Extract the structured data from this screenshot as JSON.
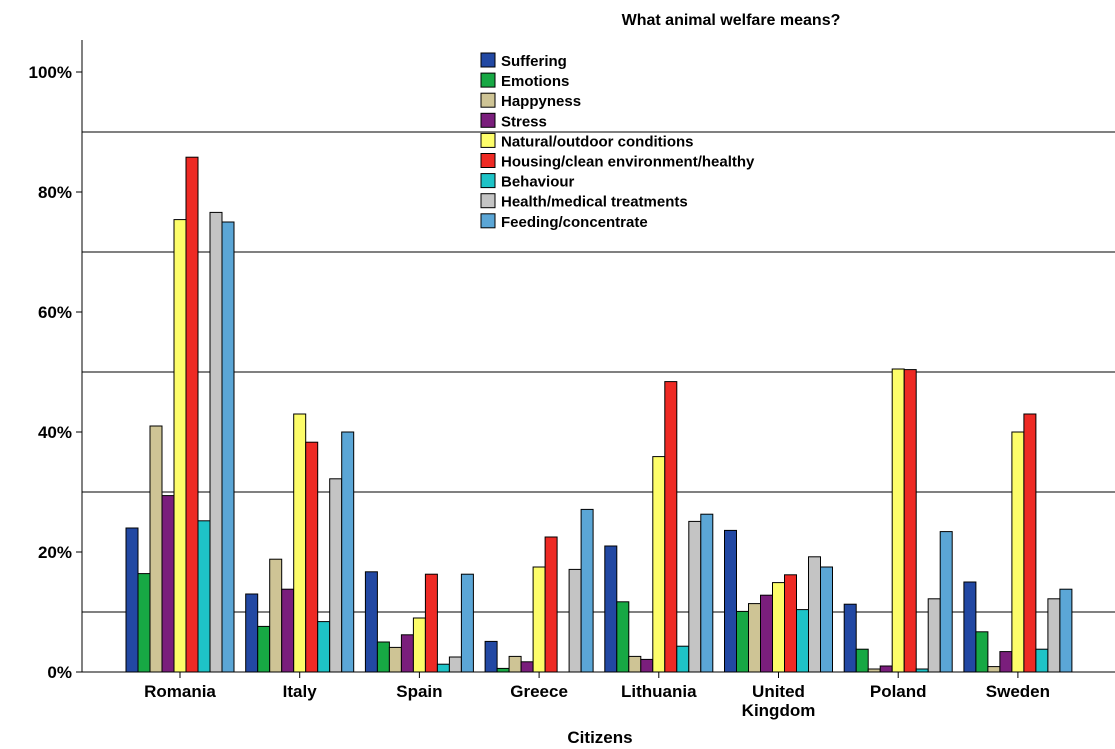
{
  "chart_data": {
    "type": "bar",
    "title": "What animal welfare means?",
    "xlabel": "Citizens",
    "ylabel": "",
    "ylim": [
      0,
      100
    ],
    "yticks": [
      "0%",
      "20%",
      "40%",
      "60%",
      "80%",
      "100%"
    ],
    "grid_values": [
      10,
      30,
      50,
      70,
      90
    ],
    "legend_position": "top-center",
    "categories": [
      "Romania",
      "Italy",
      "Spain",
      "Greece",
      "Lithuania",
      "United Kingdom",
      "Poland",
      "Sweden"
    ],
    "series": [
      {
        "name": "Suffering",
        "color": "#2248a3",
        "values": [
          24,
          13,
          16.7,
          5.1,
          21,
          23.6,
          11.3,
          15
        ]
      },
      {
        "name": "Emotions",
        "color": "#17a844",
        "values": [
          16.4,
          7.6,
          5,
          0.6,
          11.7,
          10.1,
          3.8,
          6.7
        ]
      },
      {
        "name": "Happyness",
        "color": "#cec495",
        "values": [
          41,
          18.8,
          4.1,
          2.6,
          2.6,
          11.4,
          0.5,
          0.9
        ]
      },
      {
        "name": "Stress",
        "color": "#7a1e7c",
        "values": [
          29.4,
          13.8,
          6.2,
          1.7,
          2.1,
          12.8,
          1,
          3.4
        ]
      },
      {
        "name": "Natural/outdoor conditions",
        "color": "#fdfd6a",
        "values": [
          75.4,
          43,
          9,
          17.5,
          35.9,
          14.9,
          50.5,
          40
        ]
      },
      {
        "name": "Housing/clean environment/healthy",
        "color": "#ee2a24",
        "values": [
          85.8,
          38.3,
          16.3,
          22.5,
          48.4,
          16.2,
          50.4,
          43
        ]
      },
      {
        "name": "Behaviour",
        "color": "#1ec3c7",
        "values": [
          25.2,
          8.4,
          1.3,
          0,
          4.3,
          10.4,
          0.5,
          3.8
        ]
      },
      {
        "name": "Health/medical treatments",
        "color": "#c4c4c4",
        "values": [
          76.6,
          32.2,
          2.5,
          17.1,
          25.1,
          19.2,
          12.2,
          12.2
        ]
      },
      {
        "name": "Feeding/concentrate",
        "color": "#5ba6d6",
        "values": [
          75,
          40,
          16.3,
          27.1,
          26.3,
          17.5,
          23.4,
          13.8
        ]
      }
    ]
  }
}
